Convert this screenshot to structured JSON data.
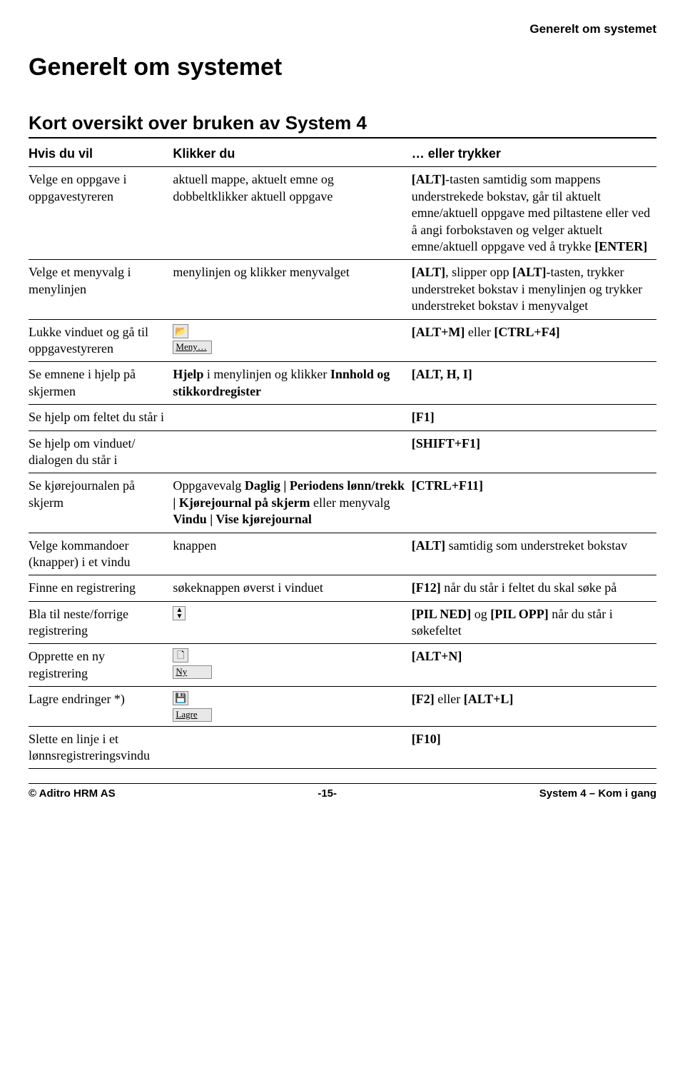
{
  "header_right": "Generelt om systemet",
  "title": "Generelt om systemet",
  "subtitle": "Kort oversikt over bruken av System 4",
  "columns": {
    "c1": "Hvis du vil",
    "c2": "Klikker du",
    "c3": "… eller trykker"
  },
  "rows": {
    "r1_c1": "Velge en oppgave i oppgavestyreren",
    "r1_c2": "aktuell mappe, aktuelt emne og dobbeltklikker aktuell oppgave",
    "r1_c3_a": "[ALT]",
    "r1_c3_b": "-tasten samtidig som mappens understrekede bokstav, går til aktuelt emne/aktuell oppgave med piltastene eller ved å angi forbokstaven og velger aktuelt emne/aktuell oppgave ved å trykke ",
    "r1_c3_c": "[ENTER]",
    "r2_c1": "Velge et menyvalg i menylinjen",
    "r2_c2": "menylinjen og klikker menyvalget",
    "r2_c3_a": "[ALT]",
    "r2_c3_b": ", slipper opp ",
    "r2_c3_c": "[ALT]",
    "r2_c3_d": "-tasten, trykker understreket bokstav i menylinjen og trykker understreket bokstav i menyvalget",
    "r3_c1": "Lukke vinduet og gå til oppgavestyreren",
    "r3_btn_label": "Meny…",
    "r3_c3_a": "[ALT+M]",
    "r3_c3_b": " eller ",
    "r3_c3_c": "[CTRL+F4]",
    "r4_c1": "Se emnene i hjelp på skjermen",
    "r4_c2_a": "Hjelp",
    "r4_c2_b": " i menylinjen og klikker ",
    "r4_c2_c": "Innhold og stikkordregister",
    "r4_c3": "[ALT, H, I]",
    "r5_c1": "Se hjelp om feltet du står i",
    "r5_c3": "[F1]",
    "r6_c1": "Se hjelp om vinduet/ dialogen du står i",
    "r6_c3": "[SHIFT+F1]",
    "r7_c1": "Se kjørejournalen på skjerm",
    "r7_c2_a": "Oppgavevalg ",
    "r7_c2_b": "Daglig | Periodens lønn/trekk | Kjørejournal på skjerm",
    "r7_c2_c": " eller menyvalg ",
    "r7_c2_d": "Vindu | Vise kjørejournal",
    "r7_c3": "[CTRL+F11]",
    "r8_c1": "Velge kommandoer (knapper) i et vindu",
    "r8_c2": "knappen",
    "r8_c3_a": "[ALT]",
    "r8_c3_b": " samtidig som understreket bokstav",
    "r9_c1": "Finne en registrering",
    "r9_c2": "søkeknappen øverst i vinduet",
    "r9_c3_a": "[F12]",
    "r9_c3_b": " når du står i feltet du skal søke på",
    "r10_c1": "Bla til neste/forrige registrering",
    "r10_c3_a": "[PIL NED]",
    "r10_c3_b": " og ",
    "r10_c3_c": "[PIL OPP]",
    "r10_c3_d": " når du står i søkefeltet",
    "r11_c1": "Opprette en ny registrering",
    "r11_btn_label": "Ny",
    "r11_c3": "[ALT+N]",
    "r12_c1": "Lagre endringer *)",
    "r12_btn_label": "Lagre",
    "r12_c3_a": "[F2]",
    "r12_c3_b": " eller ",
    "r12_c3_c": "[ALT+L]",
    "r13_c1": "Slette en linje i et lønnsregistrerings­vindu",
    "r13_c3": "[F10]"
  },
  "footer": {
    "left": "© Aditro HRM AS",
    "center": "-15-",
    "right": "System 4 – Kom i gang"
  }
}
